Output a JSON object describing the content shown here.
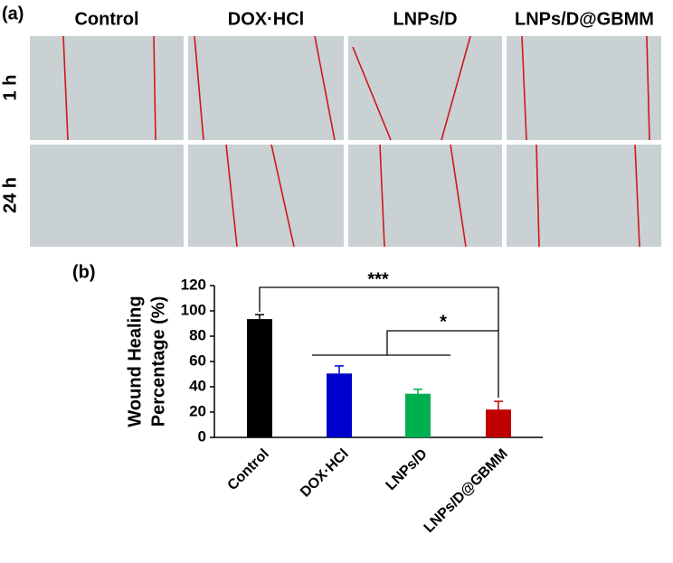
{
  "panel_a": {
    "label": "(a)",
    "columns": [
      "Control",
      "DOX·HCl",
      "LNPs/D",
      "LNPs/D@GBMM"
    ],
    "rows": [
      "1 h",
      "24 h"
    ]
  },
  "chart_data": {
    "type": "bar",
    "panel_label": "(b)",
    "y_label": [
      "Wound Healing",
      "Percentage (%)"
    ],
    "categories": [
      "Control",
      "DOX·HCl",
      "LNPs/D",
      "LNPs/D@GBMM"
    ],
    "values": [
      93.5,
      50.5,
      34.5,
      22
    ],
    "errors": [
      3.5,
      6,
      3.5,
      6.5
    ],
    "colors": [
      "#000000",
      "#0000cc",
      "#00b050",
      "#c00000"
    ],
    "ylim": [
      0,
      120
    ],
    "yticks": [
      0,
      20,
      40,
      60,
      80,
      100,
      120
    ],
    "annotations": [
      "***",
      "*"
    ]
  }
}
